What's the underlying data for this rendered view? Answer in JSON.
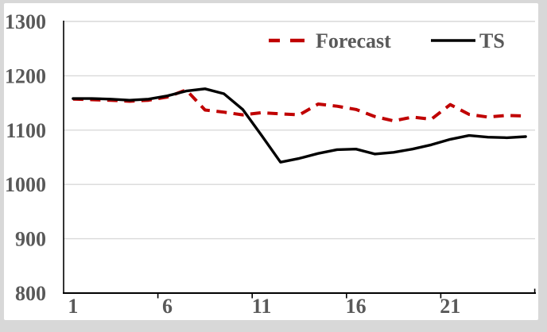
{
  "chart_data": {
    "type": "line",
    "title": "",
    "xlabel": "",
    "ylabel": "",
    "x": [
      1,
      2,
      3,
      4,
      5,
      6,
      7,
      8,
      9,
      10,
      11,
      12,
      13,
      14,
      15,
      16,
      17,
      18,
      19,
      20,
      21,
      22,
      23,
      24,
      25
    ],
    "x_tick_labels": [
      {
        "label": "1",
        "category": 1
      },
      {
        "label": "6",
        "category": 6
      },
      {
        "label": "11",
        "category": 11
      },
      {
        "label": "16",
        "category": 16
      },
      {
        "label": "21",
        "category": 21
      }
    ],
    "x_boundary_ticks": [
      5,
      10,
      15,
      20,
      25
    ],
    "y_ticks": [
      800,
      900,
      1000,
      1100,
      1200,
      1300
    ],
    "ylim": [
      800,
      1300
    ],
    "grid": "horizontal",
    "legend_position": "top",
    "series": [
      {
        "name": "Forecast",
        "style": "dashed",
        "color": "#C00000",
        "values": [
          1157,
          1156,
          1155,
          1153,
          1155,
          1161,
          1174,
          1137,
          1133,
          1128,
          1132,
          1130,
          1128,
          1148,
          1144,
          1138,
          1125,
          1117,
          1124,
          1120,
          1147,
          1129,
          1124,
          1127,
          1126
        ]
      },
      {
        "name": "TS",
        "style": "solid",
        "color": "#000000",
        "values": [
          1158,
          1158,
          1157,
          1155,
          1157,
          1163,
          1172,
          1176,
          1167,
          1138,
          1090,
          1041,
          1048,
          1057,
          1064,
          1065,
          1056,
          1059,
          1065,
          1073,
          1083,
          1090,
          1087,
          1086,
          1088
        ]
      }
    ]
  },
  "colors": {
    "frame_background": "#d8d8d8",
    "plot_background": "#ffffff",
    "gridline": "#d9d9d9",
    "axis": "#000000",
    "label_text": "#595959",
    "forecast_line": "#C00000",
    "ts_line": "#000000"
  }
}
